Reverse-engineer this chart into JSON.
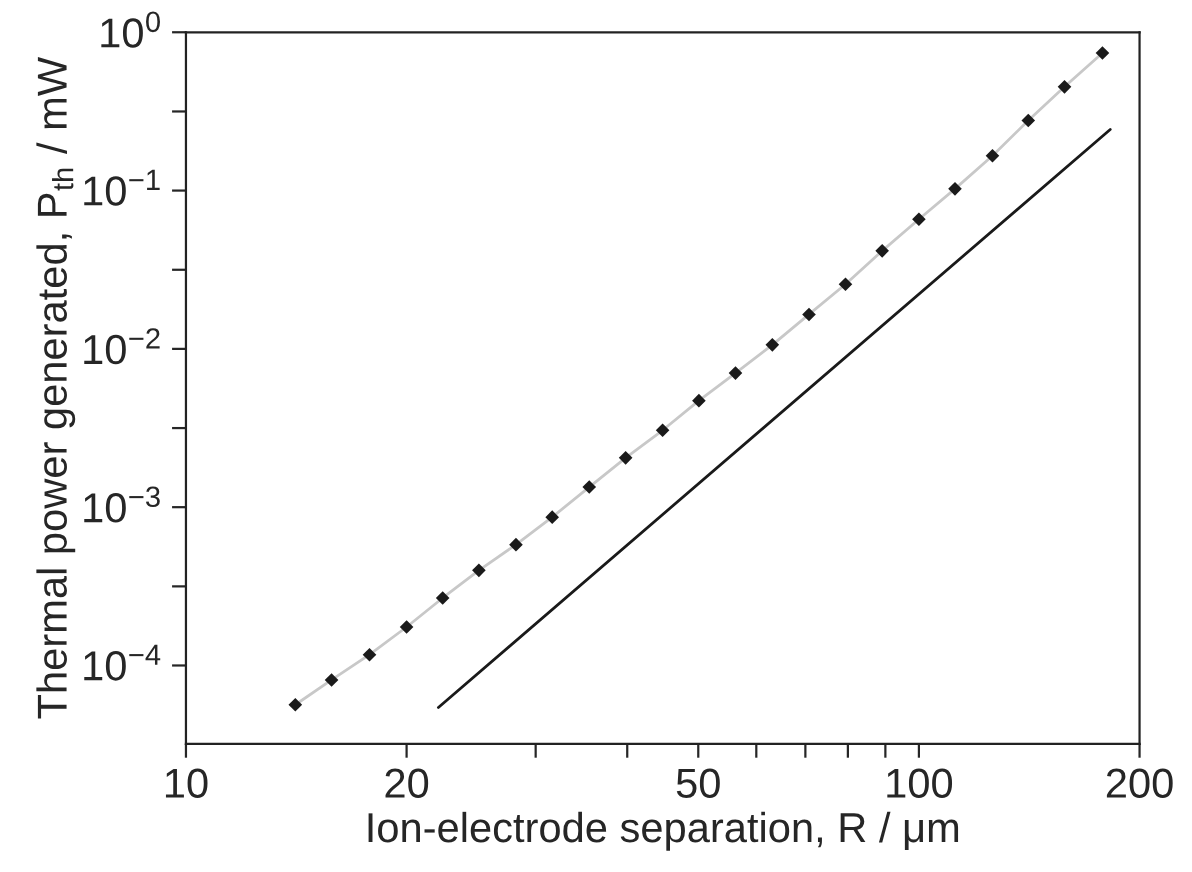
{
  "chart_data": {
    "type": "line",
    "xlabel": "Ion-electrode separation, R / μm",
    "ylabel": "Thermal power generated, P$_{th}$ / mW",
    "log": "xy",
    "xlim": [
      10,
      200
    ],
    "xticks": [
      10,
      20,
      {
        "value": 30,
        "label": null
      },
      {
        "value": 40,
        "label": null
      },
      50,
      {
        "value": 60,
        "label": null
      },
      {
        "value": 70,
        "label": null
      },
      {
        "value": 80,
        "label": null
      },
      {
        "value": 90,
        "label": null
      },
      100,
      200
    ],
    "ylim": [
      3.2e-05,
      1
    ],
    "yticks": [
      {
        "value": 0.0001,
        "label": "10$^{−4}$"
      },
      {
        "value": 0.000316,
        "label": null
      },
      {
        "value": 0.001,
        "label": "10$^{−3}$"
      },
      {
        "value": 0.00316,
        "label": null
      },
      {
        "value": 0.01,
        "label": "10$^{−2}$"
      },
      {
        "value": 0.0316,
        "label": null
      },
      {
        "value": 0.1,
        "label": "10$^{−1}$"
      },
      {
        "value": 0.316,
        "label": null
      },
      {
        "value": 1,
        "label": "10$^{0}$"
      }
    ],
    "grid": false,
    "legend": false,
    "series": [
      {
        "color": "#c8c8c8",
        "x": [
          14.1,
          15.8,
          17.8,
          20,
          22.4,
          25.1,
          28.2,
          31.6,
          35.5,
          39.8,
          44.7,
          50.1,
          56.2,
          63.1,
          70.8,
          79.4,
          89.1,
          100,
          112,
          126,
          141,
          158,
          178
        ],
        "values": [
          5.65e-05,
          8.1e-05,
          0.000117,
          0.000175,
          0.000267,
          0.000399,
          0.00058,
          0.000865,
          0.00134,
          0.00205,
          0.00306,
          0.00471,
          0.00703,
          0.0106,
          0.0165,
          0.0256,
          0.0416,
          0.0659,
          0.1025,
          0.166,
          0.277,
          0.452,
          0.739
        ]
      },
      {
        "type": "scatter",
        "color": "#1a1a1a",
        "marker": "diamond",
        "x": [
          14.1,
          15.8,
          17.8,
          20,
          22.4,
          25.1,
          28.2,
          31.6,
          35.5,
          39.8,
          44.7,
          50.1,
          56.2,
          63.1,
          70.8,
          79.4,
          89.1,
          100,
          112,
          126,
          141,
          158,
          178
        ],
        "values": [
          5.65e-05,
          8.1e-05,
          0.000117,
          0.000175,
          0.000267,
          0.000399,
          0.00058,
          0.000865,
          0.00134,
          0.00205,
          0.00306,
          0.00471,
          0.00703,
          0.0106,
          0.0165,
          0.0256,
          0.0416,
          0.0659,
          0.1025,
          0.166,
          0.277,
          0.452,
          0.739
        ]
      },
      {
        "type": "line",
        "color": "#1a1a1a",
        "x": [
          22.1,
          182.4
        ],
        "values": [
          5.43e-05,
          0.243
        ]
      }
    ]
  }
}
